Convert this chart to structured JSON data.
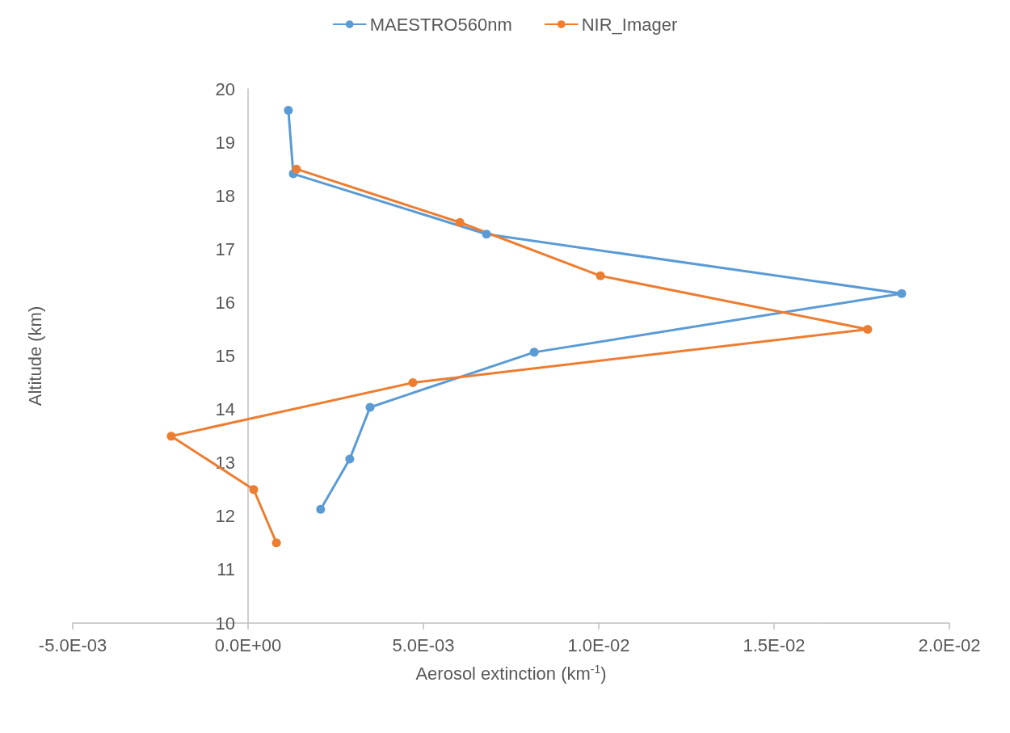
{
  "chart_data": {
    "type": "line",
    "xlabel": "Aerosol extinction (km$^{-1}$)",
    "ylabel": "Altitude (km)",
    "series": [
      {
        "name": "MAESTRO560nm",
        "color": "#5b9bd5",
        "x": [
          0.00115,
          0.00129,
          0.0068,
          0.01864,
          0.00816,
          0.00348,
          0.0029,
          0.00207
        ],
        "values": [
          19.6,
          18.41,
          17.28,
          16.17,
          15.07,
          14.04,
          13.07,
          12.13
        ]
      },
      {
        "name": "NIR_Imager",
        "color": "#ed7d31",
        "x": [
          0.00138,
          0.00604,
          0.01005,
          0.01767,
          0.0047,
          -0.00219,
          0.00016,
          0.00081
        ],
        "values": [
          18.5,
          17.5,
          16.5,
          15.5,
          14.5,
          13.5,
          12.5,
          11.5
        ]
      }
    ],
    "xlim": [
      -0.005,
      0.02
    ],
    "xticks": [
      {
        "value": -0.005,
        "label": "-5.0E-03"
      },
      {
        "value": 0,
        "label": "0.0E+00"
      },
      {
        "value": 0.005,
        "label": "5.0E-03"
      },
      {
        "value": 0.01,
        "label": "1.0E-02"
      },
      {
        "value": 0.015,
        "label": "1.5E-02"
      },
      {
        "value": 0.02,
        "label": "2.0E-02"
      }
    ],
    "ylim": [
      10,
      20
    ],
    "yticks": [
      10,
      11,
      12,
      13,
      14,
      15,
      16,
      17,
      18,
      19,
      20
    ],
    "grid": false,
    "legend": "top",
    "marker": "circle",
    "line_style": "solid"
  }
}
